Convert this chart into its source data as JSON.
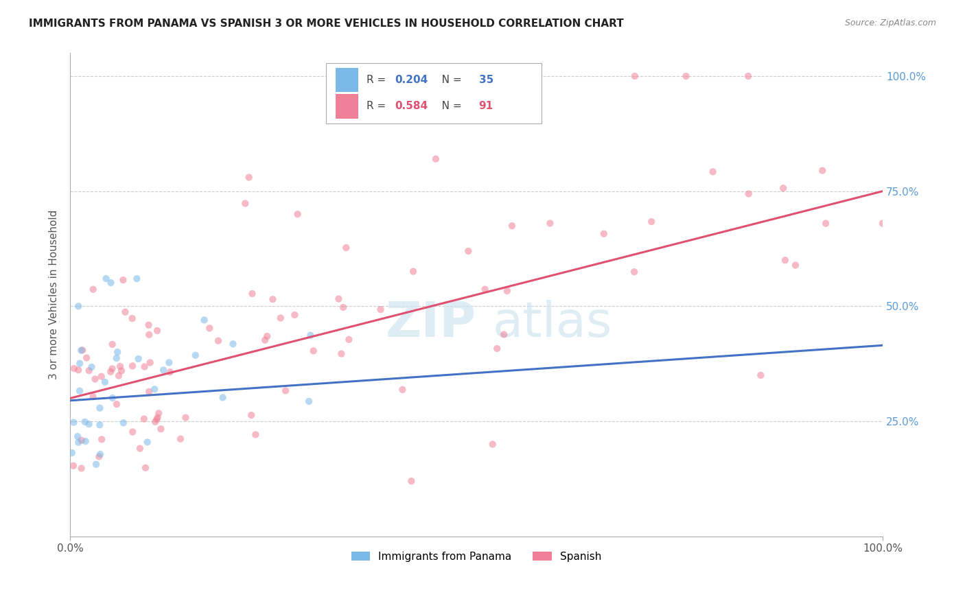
{
  "title": "IMMIGRANTS FROM PANAMA VS SPANISH 3 OR MORE VEHICLES IN HOUSEHOLD CORRELATION CHART",
  "source": "Source: ZipAtlas.com",
  "ylabel": "3 or more Vehicles in Household",
  "yticks_labels": [
    "25.0%",
    "50.0%",
    "75.0%",
    "100.0%"
  ],
  "ytick_vals": [
    0.25,
    0.5,
    0.75,
    1.0
  ],
  "xlim": [
    0.0,
    1.0
  ],
  "ylim": [
    0.0,
    1.05
  ],
  "legend_entries": [
    {
      "label": "Immigrants from Panama",
      "R": "0.204",
      "N": "35",
      "color": "#7ab8e8"
    },
    {
      "label": "Spanish",
      "R": "0.584",
      "N": "91",
      "color": "#f08098"
    }
  ],
  "blue_line_intercept": 0.295,
  "blue_line_slope": 0.12,
  "pink_line_intercept": 0.3,
  "pink_line_slope": 0.45,
  "bg_color": "#ffffff",
  "scatter_alpha": 0.55,
  "scatter_size": 55,
  "grid_color": "#cccccc",
  "watermark_color": "#d0e4f0"
}
